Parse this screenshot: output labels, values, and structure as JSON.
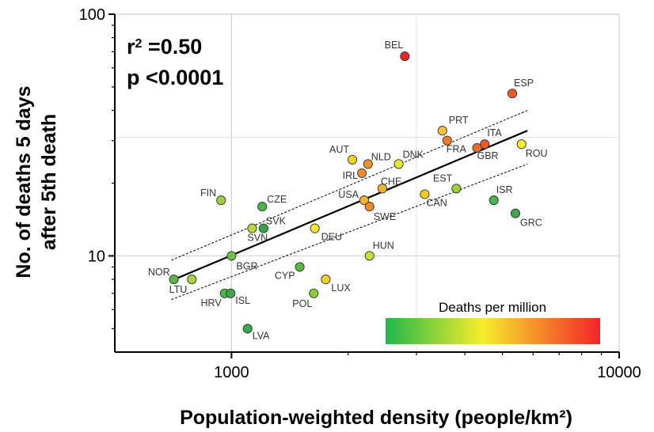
{
  "chart_data": {
    "type": "scatter",
    "xlabel": "Population-weighted density (people/km²)",
    "ylabel": "No. of deaths 5 days after 5th death",
    "ylabel_lines": [
      "No. of deaths 5 days",
      "after 5th death"
    ],
    "x_scale": "log",
    "y_scale": "log",
    "xlim": [
      500,
      10000
    ],
    "ylim": [
      4,
      100
    ],
    "x_ticks": [
      {
        "value": 1000,
        "label": "1000"
      },
      {
        "value": 10000,
        "label": "10000"
      }
    ],
    "y_ticks": [
      {
        "value": 10,
        "label": "10"
      },
      {
        "value": 100,
        "label": "100"
      }
    ],
    "grid": true,
    "annotations": {
      "r2_prefix": "r",
      "r2_exp": "2",
      "r2_value": " =0.50",
      "p_text": "p <0.0001"
    },
    "colorbar": {
      "title": "Deaths per million",
      "colors": [
        "#1fb84a",
        "#f5ee2a",
        "#f5222a"
      ],
      "placement": "bottom-right"
    },
    "fit": {
      "line": [
        [
          700,
          7.9
        ],
        [
          5800,
          33
        ]
      ],
      "ci_upper": [
        [
          700,
          9.6
        ],
        [
          5800,
          40
        ]
      ],
      "ci_lower": [
        [
          700,
          6.6
        ],
        [
          5800,
          24
        ]
      ]
    },
    "points": [
      {
        "label": "BEL",
        "x": 2800,
        "y": 67,
        "color": "#e8262a"
      },
      {
        "label": "ESP",
        "x": 5300,
        "y": 47,
        "color": "#ee5a2a"
      },
      {
        "label": "PRT",
        "x": 3500,
        "y": 33,
        "color": "#f3c33a"
      },
      {
        "label": "ITA",
        "x": 4500,
        "y": 29,
        "color": "#ee5a2a"
      },
      {
        "label": "FRA",
        "x": 3600,
        "y": 30,
        "color": "#ee7a2a"
      },
      {
        "label": "GBR",
        "x": 4300,
        "y": 28,
        "color": "#ee6a2a"
      },
      {
        "label": "ROU",
        "x": 5600,
        "y": 29,
        "color": "#f5ee2a"
      },
      {
        "label": "AUT",
        "x": 2050,
        "y": 25,
        "color": "#f5d12a"
      },
      {
        "label": "NLD",
        "x": 2250,
        "y": 24,
        "color": "#f09030"
      },
      {
        "label": "DNK",
        "x": 2700,
        "y": 24,
        "color": "#e8e830"
      },
      {
        "label": "IRL",
        "x": 2170,
        "y": 22,
        "color": "#f08a2a"
      },
      {
        "label": "CHE",
        "x": 2450,
        "y": 19,
        "color": "#f3b32a"
      },
      {
        "label": "USA",
        "x": 2200,
        "y": 17,
        "color": "#f3b32a"
      },
      {
        "label": "SWE",
        "x": 2270,
        "y": 16,
        "color": "#ee8a2a"
      },
      {
        "label": "EST",
        "x": 3800,
        "y": 19,
        "color": "#9bd23a"
      },
      {
        "label": "CAN",
        "x": 3150,
        "y": 18,
        "color": "#f3cc2a"
      },
      {
        "label": "ISR",
        "x": 4750,
        "y": 17,
        "color": "#4ab848"
      },
      {
        "label": "GRC",
        "x": 5400,
        "y": 15,
        "color": "#3aa848"
      },
      {
        "label": "FIN",
        "x": 940,
        "y": 17,
        "color": "#9bd23a"
      },
      {
        "label": "CZE",
        "x": 1200,
        "y": 16,
        "color": "#4ab848"
      },
      {
        "label": "SVK",
        "x": 1210,
        "y": 13,
        "color": "#2fa84a"
      },
      {
        "label": "SVN",
        "x": 1130,
        "y": 13,
        "color": "#b5dc3a"
      },
      {
        "label": "DEU",
        "x": 1640,
        "y": 13,
        "color": "#f5ea2a"
      },
      {
        "label": "BGR",
        "x": 1000,
        "y": 10,
        "color": "#6cc040"
      },
      {
        "label": "HUN",
        "x": 2270,
        "y": 10,
        "color": "#c8e03a"
      },
      {
        "label": "NOR",
        "x": 710,
        "y": 8,
        "color": "#5ab848"
      },
      {
        "label": "LTU",
        "x": 790,
        "y": 8,
        "color": "#a5d63a"
      },
      {
        "label": "CYP",
        "x": 1500,
        "y": 9,
        "color": "#5ab848"
      },
      {
        "label": "LUX",
        "x": 1750,
        "y": 8,
        "color": "#f5d12a"
      },
      {
        "label": "POL",
        "x": 1630,
        "y": 7,
        "color": "#8ccc3a"
      },
      {
        "label": "HRV",
        "x": 960,
        "y": 7,
        "color": "#4ab848"
      },
      {
        "label": "ISL",
        "x": 995,
        "y": 7,
        "color": "#3aa848"
      },
      {
        "label": "LVA",
        "x": 1100,
        "y": 5,
        "color": "#3aa848"
      }
    ]
  }
}
